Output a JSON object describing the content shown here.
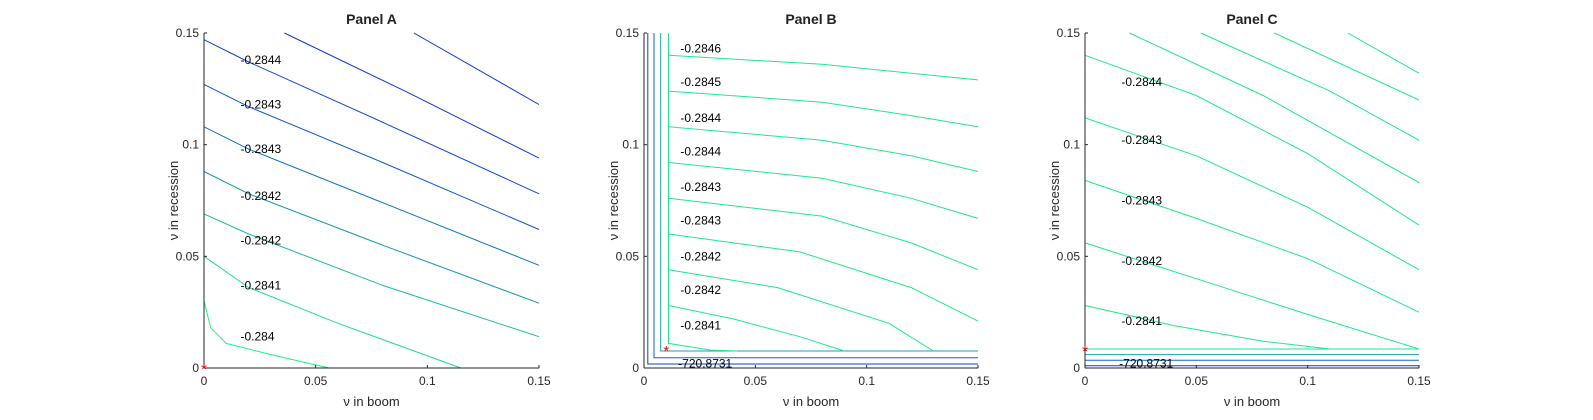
{
  "chart_data": [
    {
      "type": "contour",
      "title": "Panel A",
      "xlabel": "ν in boom",
      "ylabel": "ν in recession",
      "xlim": [
        0,
        0.15
      ],
      "ylim": [
        0,
        0.15
      ],
      "xticks": [
        "0",
        "0.05",
        "0.1",
        "0.15"
      ],
      "yticks": [
        "0",
        "0.05",
        "0.1",
        "0.15"
      ],
      "marker": {
        "x": 0.0,
        "y": 0.0,
        "symbol": "*",
        "color": "#ff0000"
      },
      "contours": [
        {
          "points": [
            [
              0,
              0.03
            ],
            [
              0.003,
              0.018
            ],
            [
              0.01,
              0.011
            ],
            [
              0.03,
              0.006
            ],
            [
              0.056,
              0.0
            ]
          ],
          "color": "#1ef28a"
        },
        {
          "points": [
            [
              0,
              0.05
            ],
            [
              0.02,
              0.036
            ],
            [
              0.06,
              0.02
            ],
            [
              0.115,
              0.0
            ]
          ],
          "color": "#1ddc96"
        },
        {
          "points": [
            [
              0,
              0.069
            ],
            [
              0.02,
              0.06
            ],
            [
              0.08,
              0.037
            ],
            [
              0.15,
              0.014
            ]
          ],
          "color": "#17b8a8"
        },
        {
          "points": [
            [
              0,
              0.088
            ],
            [
              0.02,
              0.078
            ],
            [
              0.08,
              0.055
            ],
            [
              0.15,
              0.029
            ]
          ],
          "color": "#1396b6"
        },
        {
          "points": [
            [
              0,
              0.108
            ],
            [
              0.02,
              0.098
            ],
            [
              0.08,
              0.074
            ],
            [
              0.15,
              0.046
            ]
          ],
          "color": "#0f74c2"
        },
        {
          "points": [
            [
              0,
              0.127
            ],
            [
              0.02,
              0.117
            ],
            [
              0.08,
              0.092
            ],
            [
              0.15,
              0.062
            ]
          ],
          "color": "#0c58cc"
        },
        {
          "points": [
            [
              0,
              0.147
            ],
            [
              0.02,
              0.137
            ],
            [
              0.08,
              0.11
            ],
            [
              0.15,
              0.078
            ]
          ],
          "color": "#0a46d2"
        },
        {
          "points": [
            [
              0.036,
              0.15
            ],
            [
              0.09,
              0.124
            ],
            [
              0.15,
              0.094
            ]
          ],
          "color": "#0838d8"
        },
        {
          "points": [
            [
              0.094,
              0.15
            ],
            [
              0.15,
              0.118
            ]
          ],
          "color": "#0630dc"
        }
      ],
      "contour_labels": [
        {
          "text": "-0.2844",
          "x": 0.015,
          "y": 0.138
        },
        {
          "text": "-0.2843",
          "x": 0.015,
          "y": 0.118
        },
        {
          "text": "-0.2843",
          "x": 0.015,
          "y": 0.098
        },
        {
          "text": "-0.2842",
          "x": 0.015,
          "y": 0.077
        },
        {
          "text": "-0.2842",
          "x": 0.015,
          "y": 0.057
        },
        {
          "text": "-0.2841",
          "x": 0.015,
          "y": 0.037
        },
        {
          "text": "-0.284",
          "x": 0.015,
          "y": 0.014
        }
      ]
    },
    {
      "type": "contour",
      "title": "Panel B",
      "xlabel": "ν in boom",
      "ylabel": "ν in recession",
      "xlim": [
        0,
        0.15
      ],
      "ylim": [
        0,
        0.15
      ],
      "xticks": [
        "0",
        "0.05",
        "0.1",
        "0.15"
      ],
      "yticks": [
        "0",
        "0.05",
        "0.1",
        "0.15"
      ],
      "marker": {
        "x": 0.01,
        "y": 0.008,
        "symbol": "*",
        "color": "#ff0000"
      },
      "contours": [
        {
          "points": [
            [
              0.0017,
              0.15
            ],
            [
              0.0017,
              0.0018
            ],
            [
              0.15,
              0.0018
            ]
          ],
          "color": "#0b3fd4"
        },
        {
          "points": [
            [
              0.0045,
              0.15
            ],
            [
              0.0045,
              0.0046
            ],
            [
              0.15,
              0.0046
            ]
          ],
          "color": "#1262c8"
        },
        {
          "points": [
            [
              0.0075,
              0.15
            ],
            [
              0.0075,
              0.0076
            ],
            [
              0.15,
              0.0076
            ]
          ],
          "color": "#15a3b0"
        },
        {
          "points": [
            [
              0.011,
              0.15
            ],
            [
              0.011,
              0.011
            ],
            [
              0.03,
              0.008
            ],
            [
              0.042,
              0.0076
            ]
          ],
          "color": "#1ee890"
        },
        {
          "points": [
            [
              0.011,
              0.028
            ],
            [
              0.04,
              0.022
            ],
            [
              0.07,
              0.014
            ],
            [
              0.09,
              0.0076
            ]
          ],
          "color": "#1ee890"
        },
        {
          "points": [
            [
              0.011,
              0.044
            ],
            [
              0.06,
              0.036
            ],
            [
              0.11,
              0.02
            ],
            [
              0.13,
              0.0076
            ]
          ],
          "color": "#1ee890"
        },
        {
          "points": [
            [
              0.011,
              0.06
            ],
            [
              0.07,
              0.052
            ],
            [
              0.12,
              0.036
            ],
            [
              0.15,
              0.021
            ]
          ],
          "color": "#1ee890"
        },
        {
          "points": [
            [
              0.011,
              0.076
            ],
            [
              0.08,
              0.068
            ],
            [
              0.12,
              0.056
            ],
            [
              0.15,
              0.044
            ]
          ],
          "color": "#1ee890"
        },
        {
          "points": [
            [
              0.011,
              0.092
            ],
            [
              0.08,
              0.085
            ],
            [
              0.12,
              0.076
            ],
            [
              0.15,
              0.067
            ]
          ],
          "color": "#1ee890"
        },
        {
          "points": [
            [
              0.011,
              0.108
            ],
            [
              0.08,
              0.102
            ],
            [
              0.12,
              0.095
            ],
            [
              0.15,
              0.088
            ]
          ],
          "color": "#1ee890"
        },
        {
          "points": [
            [
              0.011,
              0.124
            ],
            [
              0.08,
              0.119
            ],
            [
              0.12,
              0.113
            ],
            [
              0.15,
              0.108
            ]
          ],
          "color": "#1ee890"
        },
        {
          "points": [
            [
              0.011,
              0.14
            ],
            [
              0.08,
              0.136
            ],
            [
              0.12,
              0.132
            ],
            [
              0.15,
              0.129
            ]
          ],
          "color": "#1ee890"
        }
      ],
      "contour_labels": [
        {
          "text": "-0.2846",
          "x": 0.015,
          "y": 0.143
        },
        {
          "text": "-0.2845",
          "x": 0.015,
          "y": 0.128
        },
        {
          "text": "-0.2844",
          "x": 0.015,
          "y": 0.112
        },
        {
          "text": "-0.2844",
          "x": 0.015,
          "y": 0.097
        },
        {
          "text": "-0.2843",
          "x": 0.015,
          "y": 0.081
        },
        {
          "text": "-0.2843",
          "x": 0.015,
          "y": 0.066
        },
        {
          "text": "-0.2842",
          "x": 0.015,
          "y": 0.05
        },
        {
          "text": "-0.2842",
          "x": 0.015,
          "y": 0.035
        },
        {
          "text": "-0.2841",
          "x": 0.015,
          "y": 0.019
        },
        {
          "text": "-720.8731",
          "x": 0.014,
          "y": 0.002
        }
      ]
    },
    {
      "type": "contour",
      "title": "Panel C",
      "xlabel": "ν in boom",
      "ylabel": "ν in recession",
      "xlim": [
        0,
        0.15
      ],
      "ylim": [
        0,
        0.15
      ],
      "xticks": [
        "0",
        "0.05",
        "0.1",
        "0.15"
      ],
      "yticks": [
        "0",
        "0.05",
        "0.1",
        "0.15"
      ],
      "marker": {
        "x": 0.0,
        "y": 0.008,
        "symbol": "*",
        "color": "#ff0000"
      },
      "contours": [
        {
          "points": [
            [
              0,
              0.001
            ],
            [
              0.15,
              0.001
            ]
          ],
          "color": "#0b3fd4"
        },
        {
          "points": [
            [
              0,
              0.0035
            ],
            [
              0.15,
              0.0035
            ]
          ],
          "color": "#1262c8"
        },
        {
          "points": [
            [
              0,
              0.006
            ],
            [
              0.15,
              0.006
            ]
          ],
          "color": "#15a3b0"
        },
        {
          "points": [
            [
              0,
              0.0085
            ],
            [
              0.15,
              0.0085
            ]
          ],
          "color": "#1ee890"
        },
        {
          "points": [
            [
              0,
              0.028
            ],
            [
              0.04,
              0.019
            ],
            [
              0.08,
              0.012
            ],
            [
              0.11,
              0.0085
            ]
          ],
          "color": "#1ee890"
        },
        {
          "points": [
            [
              0,
              0.056
            ],
            [
              0.05,
              0.04
            ],
            [
              0.1,
              0.024
            ],
            [
              0.15,
              0.0085
            ]
          ],
          "color": "#1ee890"
        },
        {
          "points": [
            [
              0,
              0.084
            ],
            [
              0.05,
              0.067
            ],
            [
              0.1,
              0.049
            ],
            [
              0.15,
              0.025
            ]
          ],
          "color": "#1ee890"
        },
        {
          "points": [
            [
              0,
              0.112
            ],
            [
              0.05,
              0.095
            ],
            [
              0.1,
              0.072
            ],
            [
              0.15,
              0.044
            ]
          ],
          "color": "#1ee890"
        },
        {
          "points": [
            [
              0,
              0.14
            ],
            [
              0.05,
              0.122
            ],
            [
              0.1,
              0.096
            ],
            [
              0.15,
              0.064
            ]
          ],
          "color": "#1ee890"
        },
        {
          "points": [
            [
              0.02,
              0.15
            ],
            [
              0.08,
              0.122
            ],
            [
              0.15,
              0.083
            ]
          ],
          "color": "#1ee890"
        },
        {
          "points": [
            [
              0.052,
              0.15
            ],
            [
              0.11,
              0.124
            ],
            [
              0.15,
              0.102
            ]
          ],
          "color": "#1ee890"
        },
        {
          "points": [
            [
              0.085,
              0.15
            ],
            [
              0.15,
              0.12
            ]
          ],
          "color": "#1ee890"
        },
        {
          "points": [
            [
              0.118,
              0.15
            ],
            [
              0.15,
              0.132
            ]
          ],
          "color": "#1ee890"
        }
      ],
      "contour_labels": [
        {
          "text": "-0.2844",
          "x": 0.015,
          "y": 0.128
        },
        {
          "text": "-0.2843",
          "x": 0.015,
          "y": 0.102
        },
        {
          "text": "-0.2843",
          "x": 0.015,
          "y": 0.075
        },
        {
          "text": "-0.2842",
          "x": 0.015,
          "y": 0.048
        },
        {
          "text": "-0.2841",
          "x": 0.015,
          "y": 0.021
        },
        {
          "text": "-720.8731",
          "x": 0.014,
          "y": 0.002
        }
      ]
    }
  ]
}
